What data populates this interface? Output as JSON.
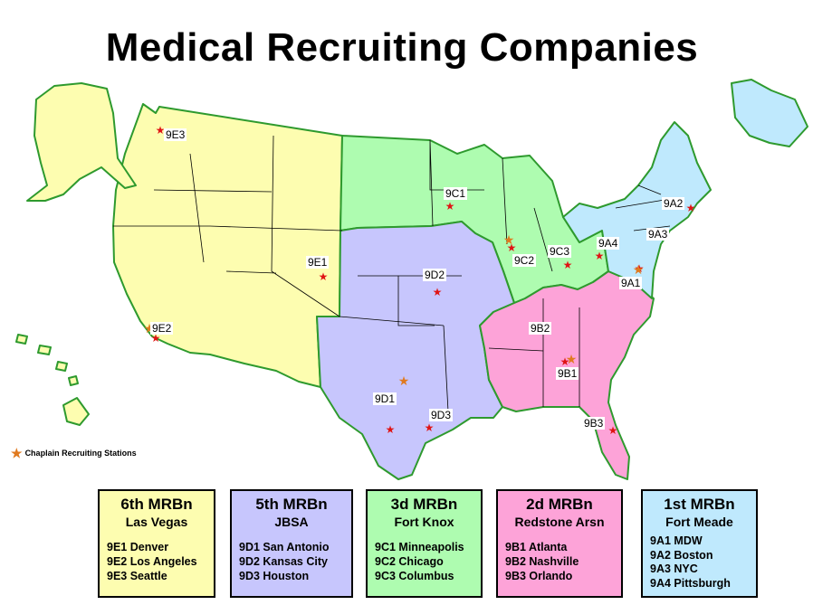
{
  "title": "Medical Recruiting Companies",
  "legend": {
    "label": "Chaplain Recruiting Stations",
    "icon": "orange-star-icon",
    "color": "#e07a1f"
  },
  "region_colors": {
    "6th": "#fdfdb0",
    "5th": "#c7c6fd",
    "3d": "#aefcb0",
    "2d": "#fda3d8",
    "1st": "#bfe9fd",
    "border": "#2e9a2e"
  },
  "map_labels": {
    "9E3": "9E3",
    "9E1": "9E1",
    "9E2": "9E2",
    "9C1": "9C1",
    "9C2": "9C2",
    "9C3": "9C3",
    "9D1": "9D1",
    "9D2": "9D2",
    "9D3": "9D3",
    "9B1": "9B1",
    "9B2": "9B2",
    "9B3": "9B3",
    "9A1": "9A1",
    "9A2": "9A2",
    "9A3": "9A3",
    "9A4": "9A4"
  },
  "battalions": [
    {
      "name": "6th MRBn",
      "location": "Las Vegas",
      "color": "#fdfdb0",
      "companies": [
        "9E1 Denver",
        "9E2 Los Angeles",
        "9E3 Seattle"
      ]
    },
    {
      "name": "5th MRBn",
      "location": "JBSA",
      "color": "#c7c6fd",
      "companies": [
        "9D1 San Antonio",
        "9D2 Kansas City",
        "9D3 Houston"
      ]
    },
    {
      "name": "3d MRBn",
      "location": "Fort Knox",
      "color": "#aefcb0",
      "companies": [
        "9C1 Minneapolis",
        "9C2 Chicago",
        "9C3 Columbus"
      ]
    },
    {
      "name": "2d MRBn",
      "location": "Redstone Arsn",
      "color": "#fda3d8",
      "companies": [
        "9B1 Atlanta",
        "9B2 Nashville",
        "9B3 Orlando"
      ]
    },
    {
      "name": "1st MRBn",
      "location": "Fort Meade",
      "color": "#bfe9fd",
      "companies": [
        "9A1 MDW",
        "9A2 Boston",
        "9A3 NYC",
        "9A4 Pittsburgh"
      ]
    }
  ]
}
